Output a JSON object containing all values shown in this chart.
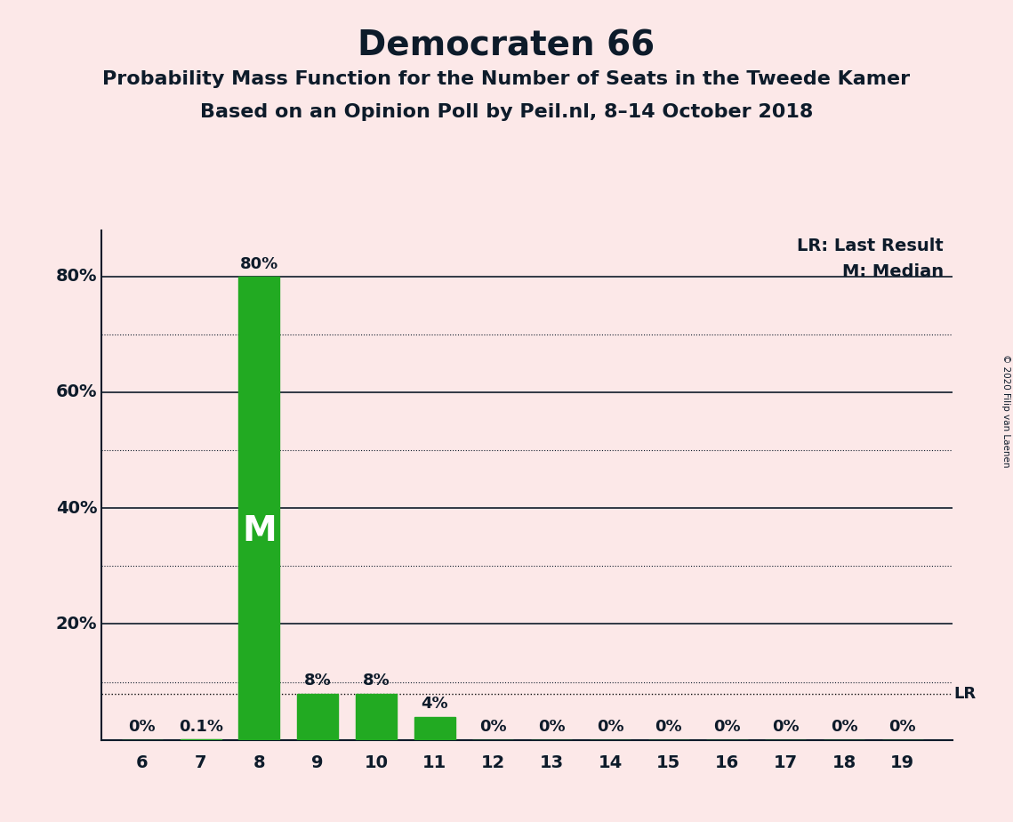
{
  "title": "Democraten 66",
  "subtitle1": "Probability Mass Function for the Number of Seats in the Tweede Kamer",
  "subtitle2": "Based on an Opinion Poll by Peil.nl, 8–14 October 2018",
  "copyright": "© 2020 Filip van Laenen",
  "seats": [
    6,
    7,
    8,
    9,
    10,
    11,
    12,
    13,
    14,
    15,
    16,
    17,
    18,
    19
  ],
  "probabilities": [
    0.0,
    0.001,
    0.8,
    0.08,
    0.08,
    0.04,
    0.0,
    0.0,
    0.0,
    0.0,
    0.0,
    0.0,
    0.0,
    0.0
  ],
  "bar_labels": [
    "0%",
    "0.1%",
    "80%",
    "8%",
    "8%",
    "4%",
    "0%",
    "0%",
    "0%",
    "0%",
    "0%",
    "0%",
    "0%",
    "0%"
  ],
  "bar_color": "#22aa22",
  "median_seat": 8,
  "median_label": "M",
  "lr_value": 0.08,
  "lr_label": "LR",
  "lr_legend": "LR: Last Result",
  "m_legend": "M: Median",
  "background_color": "#fce8e8",
  "title_fontsize": 28,
  "subtitle_fontsize": 16,
  "label_fontsize": 13,
  "tick_fontsize": 14,
  "legend_fontsize": 14,
  "ylim": [
    0,
    0.88
  ],
  "solid_yticks": [
    0.2,
    0.4,
    0.6,
    0.8
  ],
  "dotted_yticks": [
    0.1,
    0.3,
    0.5,
    0.7
  ],
  "ylabel_positions": [
    [
      0.8,
      "80%"
    ],
    [
      0.6,
      "60%"
    ],
    [
      0.4,
      "40%"
    ],
    [
      0.2,
      "20%"
    ]
  ],
  "text_color": "#0d1b2a",
  "lr_line_color": "#111111",
  "median_fontsize": 28
}
